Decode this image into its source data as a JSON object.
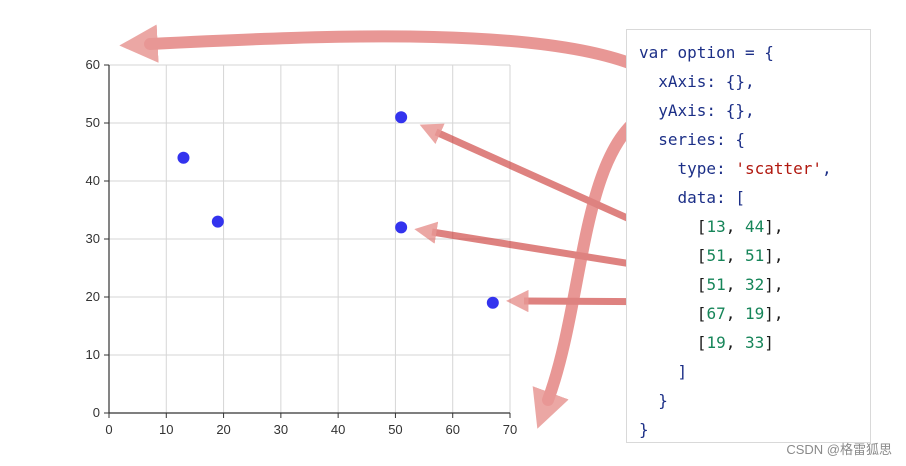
{
  "chart_data": {
    "type": "scatter",
    "points": [
      [
        13,
        44
      ],
      [
        51,
        51
      ],
      [
        51,
        32
      ],
      [
        67,
        19
      ],
      [
        19,
        33
      ]
    ],
    "xlim": [
      0,
      70
    ],
    "ylim": [
      0,
      60
    ],
    "x_ticks": [
      0,
      10,
      20,
      30,
      40,
      50,
      60,
      70
    ],
    "y_ticks": [
      0,
      10,
      20,
      30,
      40,
      50,
      60
    ],
    "grid": true,
    "point_color": "#3333ee"
  },
  "code": {
    "line_open": "var option = {",
    "xaxis": "xAxis: {},",
    "yaxis": "yAxis: {},",
    "series": "series: {",
    "type_key": "type: ",
    "type_value": "'scatter'",
    "type_tail": ",",
    "data_open": "data: [",
    "data_close": "]",
    "series_close": "}",
    "option_close": "}"
  },
  "arrow_color": "#d9534f",
  "watermark": "CSDN @格雷狐思"
}
